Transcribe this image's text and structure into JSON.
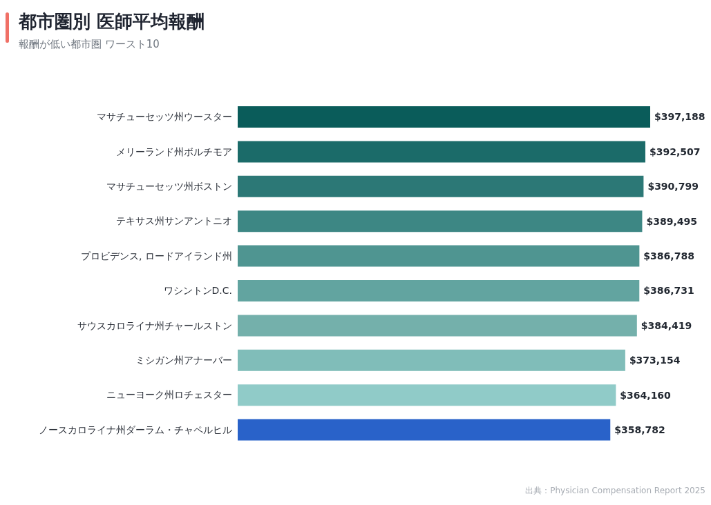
{
  "chart_data": {
    "type": "bar",
    "orientation": "horizontal",
    "title": "都市圏別 医師平均報酬",
    "subtitle": "報酬が低い都市圏 ワースト10",
    "categories": [
      "マサチューセッツ州ウースター",
      "メリーランド州ボルチモア",
      "マサチューセッツ州ボストン",
      "テキサス州サンアントニオ",
      "プロビデンス, ロードアイランド州",
      "ワシントンD.C.",
      "サウスカロライナ州チャールストン",
      "ミシガン州アナーバー",
      "ニューヨーク州ロチェスター",
      "ノースカロライナ州ダーラム・チャペルヒル"
    ],
    "values": [
      397188,
      392507,
      390799,
      389495,
      386788,
      386731,
      384419,
      373154,
      364160,
      358782
    ],
    "value_labels": [
      "$397,188",
      "$392,507",
      "$390,799",
      "$389,495",
      "$386,788",
      "$386,731",
      "$384,419",
      "$373,154",
      "$364,160",
      "$358,782"
    ],
    "colors": [
      "#0a5c5a",
      "#1b6b69",
      "#2c7876",
      "#3d8784",
      "#4f9591",
      "#62a4a0",
      "#74b0ab",
      "#80bdb9",
      "#90cbc8",
      "#2962c9"
    ],
    "annotations": [
      "出典：Physician Compensation Report 2025"
    ]
  }
}
